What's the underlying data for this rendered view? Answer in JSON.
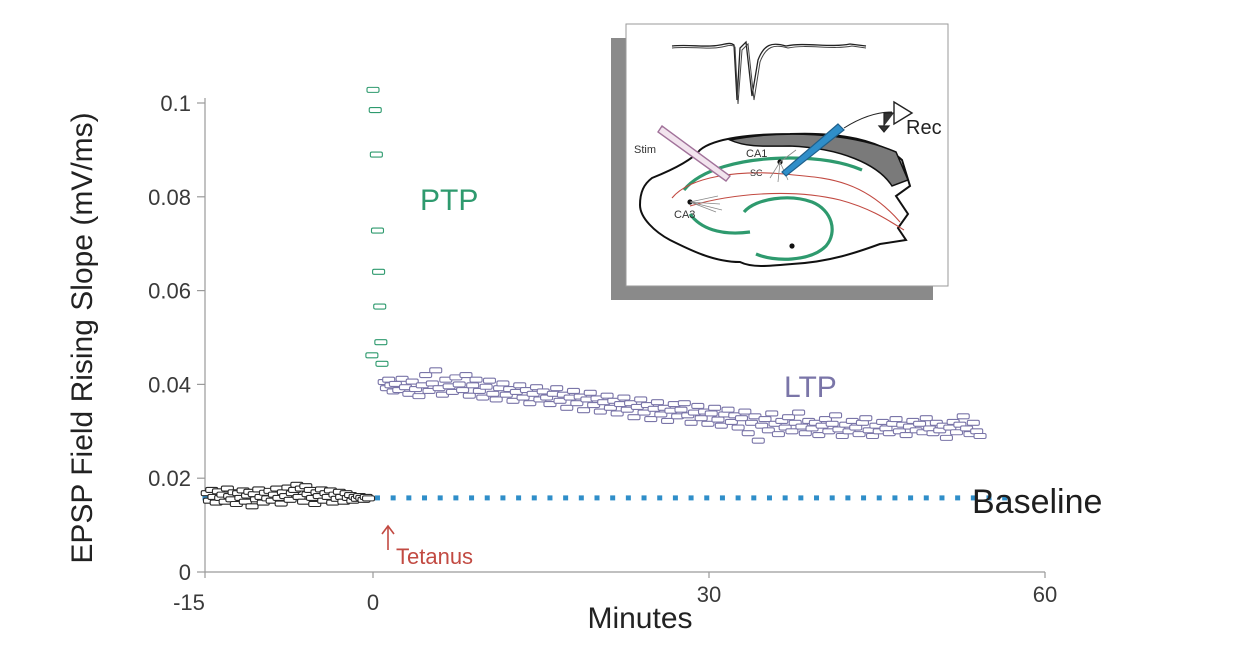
{
  "chart_data": {
    "type": "scatter",
    "xlabel": "Minutes",
    "ylabel": "EPSP Field Rising Slope (mV/ms)",
    "xlim": [
      -15,
      60
    ],
    "ylim": [
      0,
      0.105
    ],
    "x_ticks": [
      {
        "value": -15,
        "label": "-15"
      },
      {
        "value": 0,
        "label": "0"
      },
      {
        "value": 30,
        "label": "30"
      },
      {
        "value": 60,
        "label": "60"
      }
    ],
    "y_ticks": [
      {
        "value": 0,
        "label": "0"
      },
      {
        "value": 0.02,
        "label": "0.02"
      },
      {
        "value": 0.04,
        "label": "0.04"
      },
      {
        "value": 0.06,
        "label": "0.06"
      },
      {
        "value": 0.08,
        "label": "0.08"
      },
      {
        "value": 0.1,
        "label": "0.1"
      }
    ],
    "colors": {
      "baseline_points": "#2a2a2a",
      "ptp_points": "#2e9a6e",
      "ltp_points": "#7a75a8",
      "baseline_line": "#2f8ec9",
      "tetanus": "#c24a42"
    },
    "series": [
      {
        "name": "Baseline",
        "color": "#2a2a2a",
        "points": [
          [
            -14.8,
            0.0168
          ],
          [
            -14.6,
            0.0152
          ],
          [
            -14.4,
            0.0175
          ],
          [
            -14.2,
            0.016
          ],
          [
            -14.0,
            0.0148
          ],
          [
            -13.8,
            0.0172
          ],
          [
            -13.6,
            0.0158
          ],
          [
            -13.4,
            0.0165
          ],
          [
            -13.2,
            0.015
          ],
          [
            -13.0,
            0.0178
          ],
          [
            -12.8,
            0.0162
          ],
          [
            -12.6,
            0.0155
          ],
          [
            -12.4,
            0.017
          ],
          [
            -12.2,
            0.0145
          ],
          [
            -12.0,
            0.0168
          ],
          [
            -11.8,
            0.0158
          ],
          [
            -11.6,
            0.0174
          ],
          [
            -11.4,
            0.015
          ],
          [
            -11.2,
            0.0163
          ],
          [
            -11.0,
            0.0171
          ],
          [
            -10.8,
            0.014
          ],
          [
            -10.6,
            0.0166
          ],
          [
            -10.4,
            0.0155
          ],
          [
            -10.2,
            0.0176
          ],
          [
            -10.0,
            0.016
          ],
          [
            -9.8,
            0.0148
          ],
          [
            -9.6,
            0.0169
          ],
          [
            -9.4,
            0.0157
          ],
          [
            -9.2,
            0.0173
          ],
          [
            -9.0,
            0.0152
          ],
          [
            -8.8,
            0.0165
          ],
          [
            -8.6,
            0.0178
          ],
          [
            -8.4,
            0.0158
          ],
          [
            -8.2,
            0.0146
          ],
          [
            -8.0,
            0.017
          ],
          [
            -7.8,
            0.0162
          ],
          [
            -7.6,
            0.018
          ],
          [
            -7.4,
            0.0154
          ],
          [
            -7.2,
            0.0168
          ],
          [
            -7.0,
            0.0175
          ],
          [
            -6.8,
            0.0186
          ],
          [
            -6.6,
            0.016
          ],
          [
            -6.4,
            0.0178
          ],
          [
            -6.2,
            0.015
          ],
          [
            -6.0,
            0.0183
          ],
          [
            -5.8,
            0.0166
          ],
          [
            -5.6,
            0.0175
          ],
          [
            -5.4,
            0.0158
          ],
          [
            -5.2,
            0.0145
          ],
          [
            -5.0,
            0.017
          ],
          [
            -4.8,
            0.0162
          ],
          [
            -4.6,
            0.0176
          ],
          [
            -4.4,
            0.0152
          ],
          [
            -4.2,
            0.0168
          ],
          [
            -4.0,
            0.016
          ],
          [
            -3.8,
            0.0174
          ],
          [
            -3.6,
            0.0148
          ],
          [
            -3.4,
            0.0165
          ],
          [
            -3.2,
            0.0156
          ],
          [
            -3.0,
            0.0171
          ],
          [
            -2.8,
            0.016
          ],
          [
            -2.6,
            0.015
          ],
          [
            -2.4,
            0.0168
          ],
          [
            -2.2,
            0.0158
          ],
          [
            -2.0,
            0.0164
          ],
          [
            -1.8,
            0.0152
          ],
          [
            -1.6,
            0.016
          ],
          [
            -1.4,
            0.0156
          ],
          [
            -1.2,
            0.0162
          ],
          [
            -1.0,
            0.0158
          ],
          [
            -0.8,
            0.0154
          ],
          [
            -0.6,
            0.016
          ],
          [
            -0.4,
            0.0157
          ]
        ]
      },
      {
        "name": "PTP",
        "color": "#2e9a6e",
        "points": [
          [
            0.0,
            0.1028
          ],
          [
            0.2,
            0.0985
          ],
          [
            0.3,
            0.089
          ],
          [
            0.4,
            0.0728
          ],
          [
            0.5,
            0.064
          ],
          [
            0.6,
            0.0566
          ],
          [
            0.7,
            0.049
          ],
          [
            0.8,
            0.0444
          ],
          [
            -0.1,
            0.0462
          ]
        ]
      },
      {
        "name": "LTP",
        "color": "#7a75a8",
        "points": [
          [
            1.0,
            0.0405
          ],
          [
            1.2,
            0.0392
          ],
          [
            1.4,
            0.041
          ],
          [
            1.6,
            0.0398
          ],
          [
            1.8,
            0.0385
          ],
          [
            2.0,
            0.0401
          ],
          [
            2.3,
            0.0388
          ],
          [
            2.6,
            0.0412
          ],
          [
            2.9,
            0.0394
          ],
          [
            3.2,
            0.038
          ],
          [
            3.5,
            0.0406
          ],
          [
            3.8,
            0.039
          ],
          [
            4.1,
            0.0375
          ],
          [
            4.4,
            0.0398
          ],
          [
            4.7,
            0.042
          ],
          [
            5.0,
            0.0386
          ],
          [
            5.3,
            0.0402
          ],
          [
            5.6,
            0.043
          ],
          [
            5.9,
            0.0392
          ],
          [
            6.2,
            0.0378
          ],
          [
            6.5,
            0.041
          ],
          [
            6.8,
            0.0396
          ],
          [
            7.1,
            0.0384
          ],
          [
            7.4,
            0.0415
          ],
          [
            7.7,
            0.04
          ],
          [
            8.0,
            0.0388
          ],
          [
            8.3,
            0.042
          ],
          [
            8.6,
            0.0376
          ],
          [
            8.9,
            0.0398
          ],
          [
            9.2,
            0.041
          ],
          [
            9.5,
            0.0386
          ],
          [
            9.8,
            0.0372
          ],
          [
            10.1,
            0.0395
          ],
          [
            10.4,
            0.0408
          ],
          [
            10.7,
            0.038
          ],
          [
            11.0,
            0.0368
          ],
          [
            11.3,
            0.0392
          ],
          [
            11.6,
            0.0402
          ],
          [
            11.9,
            0.0378
          ],
          [
            12.2,
            0.039
          ],
          [
            12.5,
            0.0365
          ],
          [
            12.8,
            0.0384
          ],
          [
            13.1,
            0.0398
          ],
          [
            13.4,
            0.0372
          ],
          [
            13.7,
            0.0388
          ],
          [
            14.0,
            0.036
          ],
          [
            14.3,
            0.038
          ],
          [
            14.6,
            0.0394
          ],
          [
            14.9,
            0.0368
          ],
          [
            15.2,
            0.0385
          ],
          [
            15.5,
            0.0372
          ],
          [
            15.8,
            0.0358
          ],
          [
            16.1,
            0.038
          ],
          [
            16.4,
            0.0392
          ],
          [
            16.7,
            0.0365
          ],
          [
            17.0,
            0.0378
          ],
          [
            17.3,
            0.035
          ],
          [
            17.6,
            0.0372
          ],
          [
            17.9,
            0.0386
          ],
          [
            18.2,
            0.036
          ],
          [
            18.5,
            0.0374
          ],
          [
            18.8,
            0.0345
          ],
          [
            19.1,
            0.0368
          ],
          [
            19.4,
            0.0382
          ],
          [
            19.7,
            0.0356
          ],
          [
            20.0,
            0.037
          ],
          [
            20.3,
            0.0342
          ],
          [
            20.6,
            0.0362
          ],
          [
            20.9,
            0.0376
          ],
          [
            21.2,
            0.035
          ],
          [
            21.5,
            0.0365
          ],
          [
            21.8,
            0.0338
          ],
          [
            22.1,
            0.0358
          ],
          [
            22.4,
            0.0372
          ],
          [
            22.7,
            0.0346
          ],
          [
            23.0,
            0.036
          ],
          [
            23.3,
            0.033
          ],
          [
            23.6,
            0.0352
          ],
          [
            23.9,
            0.0368
          ],
          [
            24.2,
            0.034
          ],
          [
            24.5,
            0.0356
          ],
          [
            24.8,
            0.0326
          ],
          [
            25.1,
            0.0348
          ],
          [
            25.4,
            0.0362
          ],
          [
            25.7,
            0.0336
          ],
          [
            26.0,
            0.035
          ],
          [
            26.3,
            0.0322
          ],
          [
            26.6,
            0.0344
          ],
          [
            26.9,
            0.0358
          ],
          [
            27.2,
            0.0332
          ],
          [
            27.5,
            0.0346
          ],
          [
            27.8,
            0.036
          ],
          [
            28.1,
            0.0334
          ],
          [
            28.4,
            0.0318
          ],
          [
            28.7,
            0.034
          ],
          [
            29.0,
            0.0354
          ],
          [
            29.3,
            0.0328
          ],
          [
            29.6,
            0.0342
          ],
          [
            29.9,
            0.0316
          ],
          [
            30.2,
            0.0338
          ],
          [
            30.5,
            0.035
          ],
          [
            30.8,
            0.0325
          ],
          [
            31.1,
            0.0312
          ],
          [
            31.4,
            0.0336
          ],
          [
            31.7,
            0.0346
          ],
          [
            32.0,
            0.032
          ],
          [
            32.3,
            0.0334
          ],
          [
            32.6,
            0.0308
          ],
          [
            32.9,
            0.0328
          ],
          [
            33.2,
            0.0342
          ],
          [
            33.5,
            0.0296
          ],
          [
            33.8,
            0.0318
          ],
          [
            34.1,
            0.0332
          ],
          [
            34.4,
            0.028
          ],
          [
            34.7,
            0.0312
          ],
          [
            35.0,
            0.0326
          ],
          [
            35.3,
            0.0302
          ],
          [
            35.6,
            0.0338
          ],
          [
            35.9,
            0.0316
          ],
          [
            36.2,
            0.0294
          ],
          [
            36.5,
            0.0322
          ],
          [
            36.8,
            0.0308
          ],
          [
            37.1,
            0.033
          ],
          [
            37.4,
            0.03
          ],
          [
            37.7,
            0.0318
          ],
          [
            38.0,
            0.034
          ],
          [
            38.3,
            0.031
          ],
          [
            38.6,
            0.0296
          ],
          [
            38.9,
            0.0322
          ],
          [
            39.2,
            0.0306
          ],
          [
            39.5,
            0.0318
          ],
          [
            39.8,
            0.0292
          ],
          [
            40.1,
            0.0312
          ],
          [
            40.4,
            0.0326
          ],
          [
            40.7,
            0.03
          ],
          [
            41.0,
            0.0316
          ],
          [
            41.3,
            0.0334
          ],
          [
            41.6,
            0.0304
          ],
          [
            41.9,
            0.029
          ],
          [
            42.2,
            0.0314
          ],
          [
            42.5,
            0.03
          ],
          [
            42.8,
            0.0322
          ],
          [
            43.1,
            0.0308
          ],
          [
            43.4,
            0.0294
          ],
          [
            43.7,
            0.0318
          ],
          [
            44.0,
            0.0328
          ],
          [
            44.3,
            0.0302
          ],
          [
            44.6,
            0.029
          ],
          [
            44.9,
            0.0312
          ],
          [
            45.2,
            0.03
          ],
          [
            45.5,
            0.032
          ],
          [
            45.8,
            0.0306
          ],
          [
            46.1,
            0.0296
          ],
          [
            46.4,
            0.0316
          ],
          [
            46.7,
            0.0326
          ],
          [
            47.0,
            0.03
          ],
          [
            47.3,
            0.0314
          ],
          [
            47.6,
            0.0292
          ],
          [
            47.9,
            0.031
          ],
          [
            48.2,
            0.0322
          ],
          [
            48.5,
            0.0302
          ],
          [
            48.8,
            0.0316
          ],
          [
            49.1,
            0.0298
          ],
          [
            49.4,
            0.0328
          ],
          [
            49.7,
            0.0306
          ],
          [
            50.0,
            0.0296
          ],
          [
            50.3,
            0.0318
          ],
          [
            50.6,
            0.0302
          ],
          [
            50.9,
            0.0312
          ],
          [
            51.2,
            0.0286
          ],
          [
            51.5,
            0.0308
          ],
          [
            51.8,
            0.032
          ],
          [
            52.1,
            0.0298
          ],
          [
            52.4,
            0.0314
          ],
          [
            52.7,
            0.0332
          ],
          [
            53.0,
            0.0306
          ],
          [
            53.3,
            0.0294
          ],
          [
            53.6,
            0.0318
          ],
          [
            53.9,
            0.03
          ],
          [
            54.2,
            0.029
          ]
        ]
      }
    ],
    "baseline_level": 0.0158,
    "baseline_x_range": [
      -15,
      57
    ],
    "annotations": {
      "ptp": "PTP",
      "ltp": "LTP",
      "baseline": "Baseline",
      "tetanus": "Tetanus",
      "tetanus_x": 0
    },
    "inset": {
      "stim": "Stim",
      "rec": "Rec",
      "ca1": "CA1",
      "sc": "SC",
      "ca3": "CA3"
    }
  }
}
